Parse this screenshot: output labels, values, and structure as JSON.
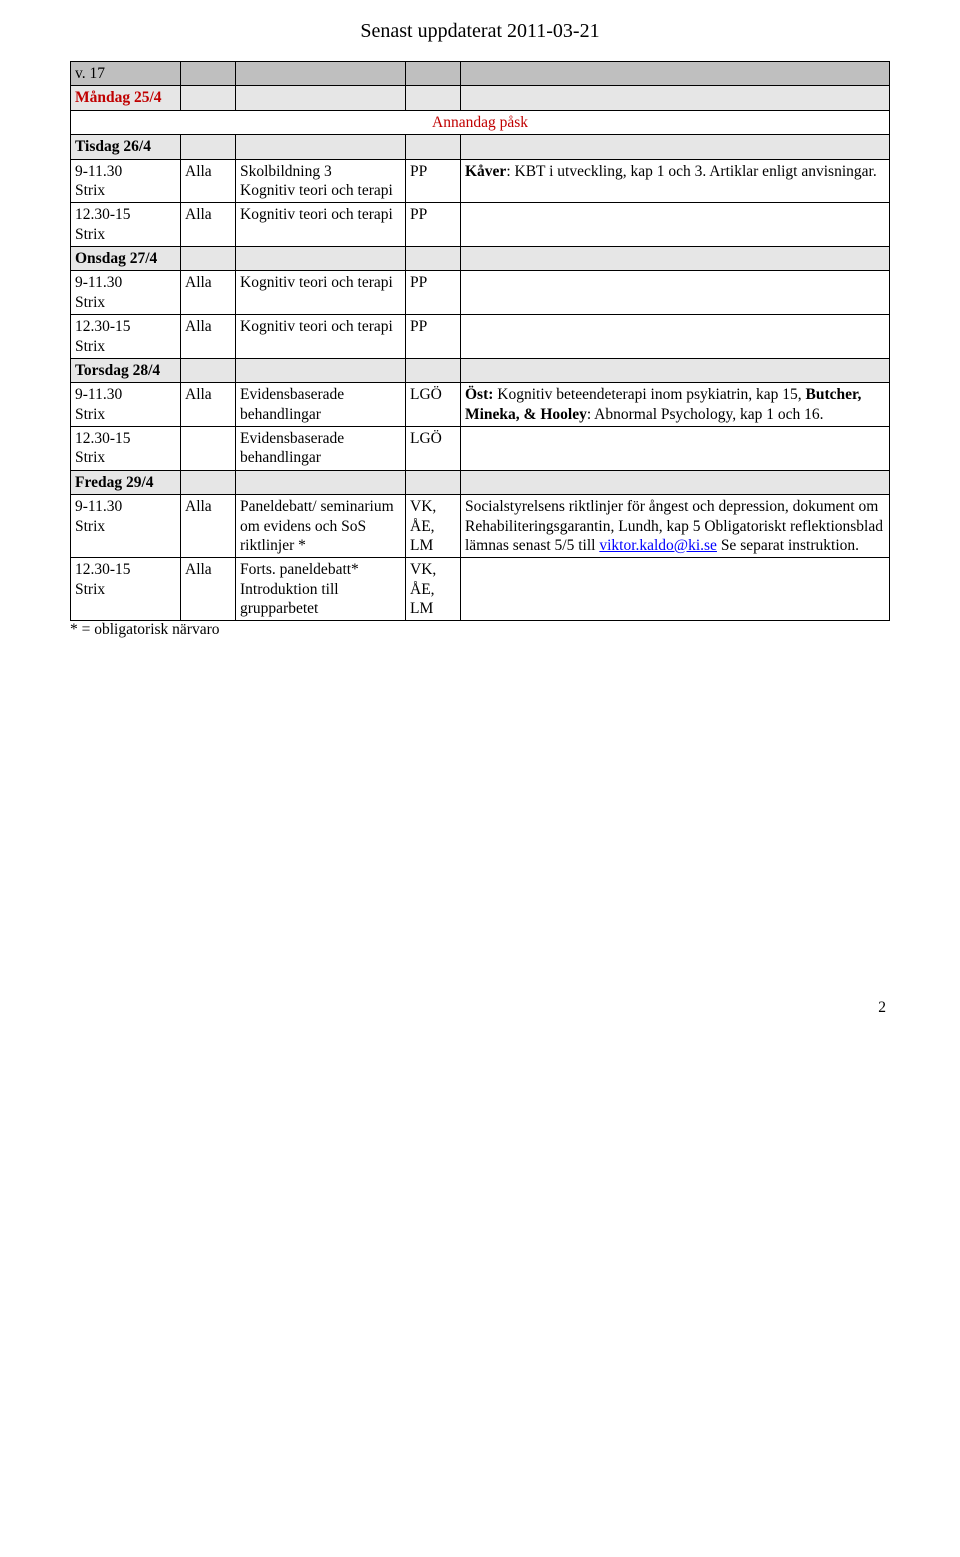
{
  "header": "Senast uppdaterat 2011-03-21",
  "week_label": "v. 17",
  "holiday_label": "Annandag påsk",
  "days": {
    "mon": "Måndag 25/4",
    "tue": "Tisdag 26/4",
    "wed": "Onsdag 27/4",
    "thu": "Torsdag 28/4",
    "fri": "Fredag 29/4"
  },
  "rows": {
    "tue_am": {
      "time": "9-11.30\nStrix",
      "who": "Alla",
      "what": "Skolbildning 3\nKognitiv teori och terapi",
      "col4": "PP",
      "note_bold": "Kåver",
      "note_rest": ": KBT i utveckling, kap 1 och 3. Artiklar enligt anvisningar."
    },
    "tue_pm": {
      "time": "12.30-15\nStrix",
      "who": "Alla",
      "what": "Kognitiv teori och terapi",
      "col4": "PP"
    },
    "wed_am": {
      "time": "9-11.30\nStrix",
      "who": "Alla",
      "what": "Kognitiv teori och terapi",
      "col4": "PP"
    },
    "wed_pm": {
      "time": "12.30-15\nStrix",
      "who": "Alla",
      "what": "Kognitiv teori och terapi",
      "col4": "PP"
    },
    "thu_am": {
      "time": "9-11.30\nStrix",
      "who": "Alla",
      "what": "Evidensbaserade behandlingar",
      "col4": "LGÖ",
      "note_bold1": "Öst:",
      "note_mid": " Kognitiv beteendeterapi inom psykiatrin, kap 15, ",
      "note_bold2": "Butcher, Mineka, & Hooley",
      "note_rest": ": Abnormal Psychology, kap 1 och 16."
    },
    "thu_pm": {
      "time": "12.30-15\nStrix",
      "who": "",
      "what": "Evidensbaserade behandlingar",
      "col4": "LGÖ"
    },
    "fri_am": {
      "time": "9-11.30\nStrix",
      "who": "Alla",
      "what": "Paneldebatt/ seminarium om evidens och SoS riktlinjer *",
      "col4": "VK, ÅE, LM",
      "note_pre": "Socialstyrelsens riktlinjer för ångest och depression, dokument om Rehabiliteringsgarantin, Lundh, kap 5 Obligatoriskt reflektionsblad lämnas senast 5/5 till ",
      "note_link": "viktor.kaldo@ki.se",
      "note_post": " Se separat instruktion."
    },
    "fri_pm": {
      "time": "12.30-15\nStrix",
      "who": "Alla",
      "what": "Forts. paneldebatt* Introduktion till grupparbetet",
      "col4": "VK, ÅE, LM"
    }
  },
  "footnote": "* = obligatorisk närvaro",
  "page_number": "2",
  "colors": {
    "grey": "#bfbfbf",
    "light": "#e6e6e6",
    "red": "#c00000",
    "link": "#0000ff",
    "border": "#000000",
    "bg": "#ffffff",
    "text": "#000000"
  }
}
